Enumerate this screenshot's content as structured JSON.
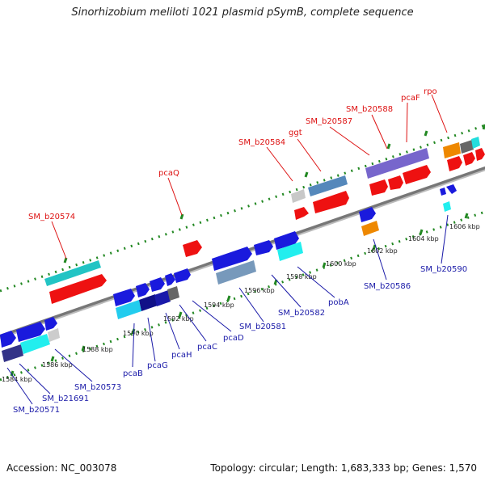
{
  "title": "Sinorhizobium meliloti 1021 plasmid pSymB, complete sequence",
  "footer": {
    "accession": "Accession: NC_003078",
    "topology": "Topology: circular; Length: 1,683,333 bp; Genes: 1,570"
  },
  "colors": {
    "backbone": "#888888",
    "dotted_track": "#228822",
    "red_label": "#dd1111",
    "blue_label": "#1a1aa8"
  },
  "tick_labels": [
    "1584 kbp",
    "1586 kbp",
    "1588 kbp",
    "1590 kbp",
    "1592 kbp",
    "1594 kbp",
    "1596 kbp",
    "1598 kbp",
    "1600 kbp",
    "1602 kbp",
    "1604 kbp",
    "1606 kbp"
  ],
  "labels_top": [
    "SM_b20574",
    "pcaQ",
    "SM_b20584",
    "ggt",
    "SM_b20587",
    "SM_b20588",
    "pcaF",
    "rpo"
  ],
  "labels_bottom": [
    "SM_b20571",
    "SM_b21691",
    "SM_b20573",
    "pcaB",
    "pcaG",
    "pcaH",
    "pcaC",
    "pcaD",
    "SM_b20581",
    "SM_b20582",
    "pobA",
    "SM_b20586",
    "SM_b20590"
  ]
}
